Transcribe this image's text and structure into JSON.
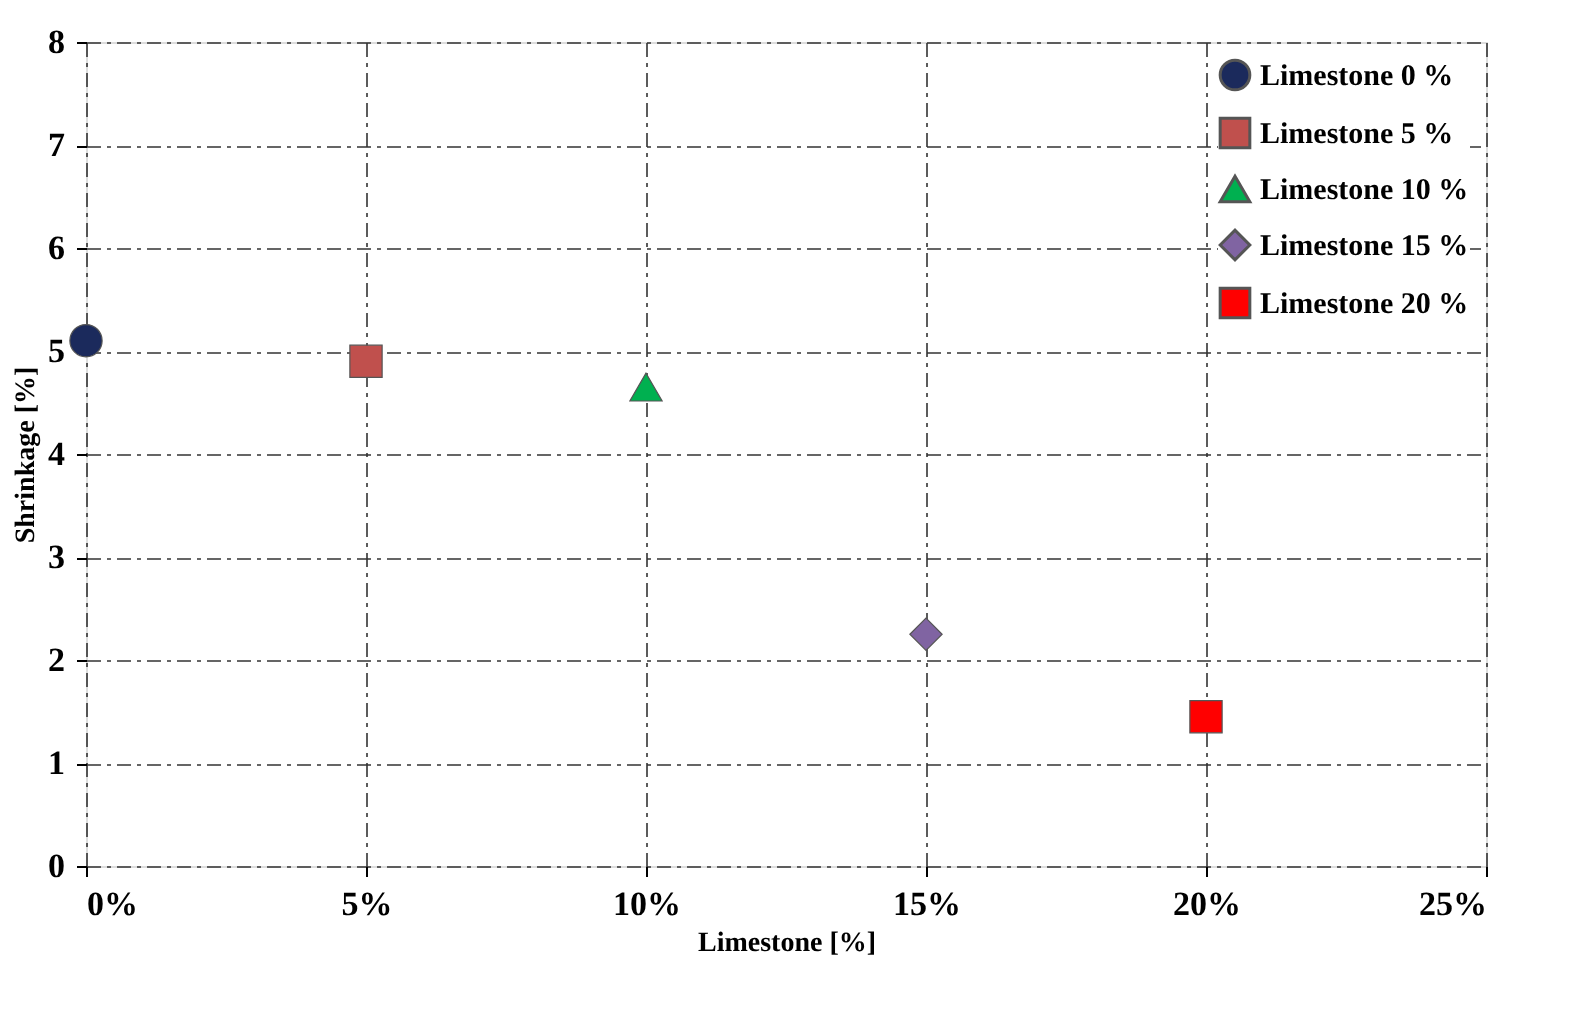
{
  "chart_data": {
    "type": "scatter",
    "xlabel": "Limestone [%]",
    "ylabel": "Shrinkage [%]",
    "xlim": [
      0,
      25
    ],
    "xticks": [
      {
        "value": 0,
        "label": "0%"
      },
      {
        "value": 5,
        "label": "5%"
      },
      {
        "value": 10,
        "label": "10%"
      },
      {
        "value": 15,
        "label": "15%"
      },
      {
        "value": 20,
        "label": "20%"
      },
      {
        "value": 25,
        "label": "25%"
      }
    ],
    "ylim": [
      0,
      8
    ],
    "yticks": [
      0,
      1,
      2,
      3,
      4,
      5,
      6,
      7,
      8
    ],
    "grid": true,
    "legend": "top right",
    "series": [
      {
        "name": "Limestone 0 %",
        "color": "#1b2a5c",
        "marker": "circle",
        "x": [
          0
        ],
        "values": [
          5.1
        ]
      },
      {
        "name": "Limestone 5 %",
        "color": "#c0504d",
        "marker": "square",
        "x": [
          5
        ],
        "values": [
          4.9
        ]
      },
      {
        "name": "Limestone 10 %",
        "color": "#00b050",
        "marker": "triangle",
        "x": [
          10
        ],
        "values": [
          4.65
        ]
      },
      {
        "name": "Limestone 15 %",
        "color": "#8064a2",
        "marker": "diamond",
        "x": [
          15
        ],
        "values": [
          2.25
        ]
      },
      {
        "name": "Limestone 20 %",
        "color": "#ff0000",
        "marker": "square",
        "x": [
          20
        ],
        "values": [
          1.45
        ]
      }
    ]
  }
}
